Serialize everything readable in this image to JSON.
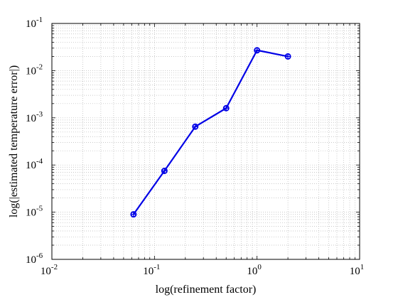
{
  "chart_data": {
    "type": "line",
    "xlabel": "log(refinement factor)",
    "ylabel": "log(|estimated temperature error|)",
    "xscale": "log",
    "yscale": "log",
    "xlim": [
      0.01,
      10
    ],
    "ylim": [
      1e-06,
      0.1
    ],
    "grid": "on (major and minor, dotted)",
    "x_ticks": [
      {
        "base": "10",
        "exp": "-2"
      },
      {
        "base": "10",
        "exp": "-1"
      },
      {
        "base": "10",
        "exp": "0"
      },
      {
        "base": "10",
        "exp": "1"
      }
    ],
    "y_ticks": [
      {
        "base": "10",
        "exp": "-6"
      },
      {
        "base": "10",
        "exp": "-5"
      },
      {
        "base": "10",
        "exp": "-4"
      },
      {
        "base": "10",
        "exp": "-3"
      },
      {
        "base": "10",
        "exp": "-2"
      },
      {
        "base": "10",
        "exp": "-1"
      }
    ],
    "series": [
      {
        "color": "#0000e6",
        "marker": "circle-plus",
        "x": [
          0.0625,
          0.125,
          0.25,
          0.5,
          1.0,
          2.0
        ],
        "y": [
          9e-06,
          7.5e-05,
          0.00065,
          0.0016,
          0.027,
          0.02
        ]
      }
    ]
  }
}
